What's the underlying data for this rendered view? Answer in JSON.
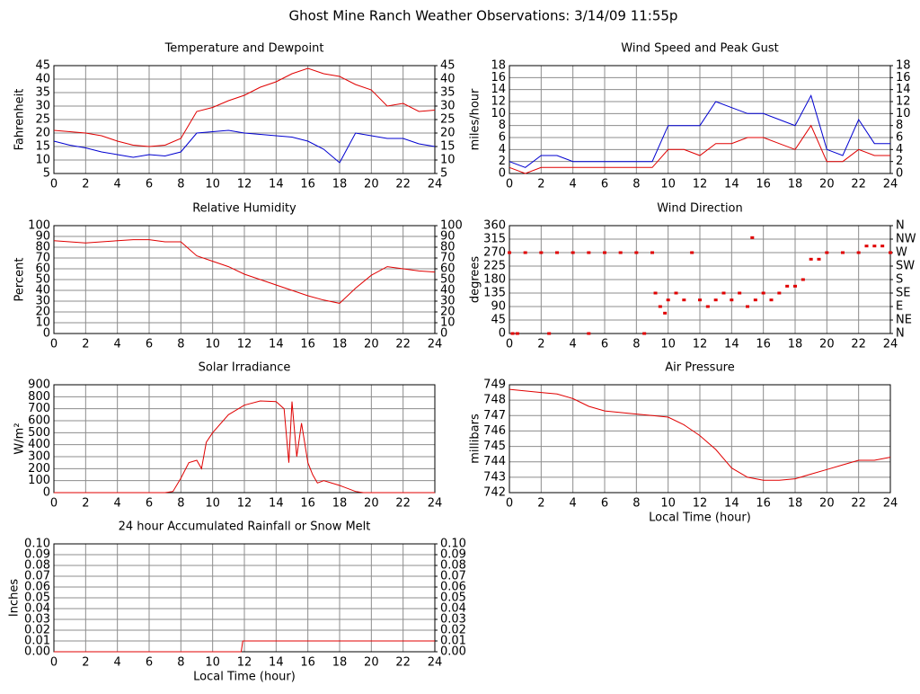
{
  "title": "Ghost Mine Ranch Weather Observations: 3/14/09 11:55p",
  "chart_data": [
    {
      "type": "line",
      "title": "Temperature and Dewpoint",
      "ylabel": "Fahrenheit",
      "x": [
        0,
        1,
        2,
        3,
        4,
        5,
        6,
        7,
        8,
        9,
        10,
        11,
        12,
        13,
        14,
        15,
        16,
        17,
        18,
        19,
        20,
        21,
        22,
        23,
        24
      ],
      "series": [
        {
          "color": "#e00000",
          "values": [
            21,
            20.5,
            20,
            19,
            17,
            15.5,
            15,
            15.5,
            18,
            28,
            29.5,
            32,
            34,
            37,
            39,
            42,
            44,
            42,
            41,
            38,
            36,
            30,
            31,
            28,
            28.5
          ]
        },
        {
          "color": "#0000d0",
          "values": [
            17,
            15.5,
            14.5,
            13,
            12,
            11,
            12,
            11.5,
            13,
            20,
            20.5,
            21,
            20,
            19.5,
            19,
            18.5,
            17,
            14,
            9,
            20,
            19,
            18,
            18,
            16,
            15
          ]
        }
      ],
      "xlim": [
        0,
        24
      ],
      "xticks": [
        0,
        2,
        4,
        6,
        8,
        10,
        12,
        14,
        16,
        18,
        20,
        22,
        24
      ],
      "ylim": [
        5,
        45
      ],
      "yticks": [
        5,
        10,
        15,
        20,
        25,
        30,
        35,
        40,
        45
      ],
      "y2lim": [
        5,
        45
      ],
      "y2ticks": [
        5,
        10,
        15,
        20,
        25,
        30,
        35,
        40,
        45
      ],
      "grid": true
    },
    {
      "type": "line",
      "title": "Wind Speed and Peak Gust",
      "ylabel": "miles/hour",
      "x": [
        0,
        1,
        2,
        3,
        4,
        5,
        6,
        7,
        8,
        9,
        10,
        11,
        12,
        13,
        14,
        15,
        16,
        17,
        18,
        19,
        20,
        21,
        22,
        23,
        24
      ],
      "series": [
        {
          "color": "#0000d0",
          "values": [
            2,
            1,
            3,
            3,
            2,
            2,
            2,
            2,
            2,
            2,
            8,
            8,
            8,
            12,
            11,
            10,
            10,
            9,
            8,
            13,
            4,
            3,
            9,
            5,
            5
          ]
        },
        {
          "color": "#e00000",
          "values": [
            1,
            0,
            1,
            1,
            1,
            1,
            1,
            1,
            1,
            1,
            4,
            4,
            3,
            5,
            5,
            6,
            6,
            5,
            4,
            8,
            2,
            2,
            4,
            3,
            3
          ]
        }
      ],
      "xlim": [
        0,
        24
      ],
      "xticks": [
        0,
        2,
        4,
        6,
        8,
        10,
        12,
        14,
        16,
        18,
        20,
        22,
        24
      ],
      "ylim": [
        0,
        18
      ],
      "yticks": [
        0,
        2,
        4,
        6,
        8,
        10,
        12,
        14,
        16,
        18
      ],
      "y2lim": [
        0,
        18
      ],
      "y2ticks": [
        0,
        2,
        4,
        6,
        8,
        10,
        12,
        14,
        16,
        18
      ],
      "grid": true
    },
    {
      "type": "line",
      "title": "Relative Humidity",
      "ylabel": "Percent",
      "x": [
        0,
        1,
        2,
        3,
        4,
        5,
        6,
        7,
        8,
        9,
        10,
        11,
        12,
        13,
        14,
        15,
        16,
        17,
        18,
        19,
        20,
        21,
        22,
        23,
        24
      ],
      "series": [
        {
          "color": "#e00000",
          "values": [
            86,
            85,
            84,
            85,
            86,
            87,
            87,
            85,
            85,
            72,
            67,
            62,
            55,
            50,
            45,
            40,
            35,
            31,
            28,
            42,
            54,
            62,
            60,
            58,
            57
          ]
        }
      ],
      "xlim": [
        0,
        24
      ],
      "xticks": [
        0,
        2,
        4,
        6,
        8,
        10,
        12,
        14,
        16,
        18,
        20,
        22,
        24
      ],
      "ylim": [
        0,
        100
      ],
      "yticks": [
        0,
        10,
        20,
        30,
        40,
        50,
        60,
        70,
        80,
        90,
        100
      ],
      "y2lim": [
        0,
        100
      ],
      "y2ticks": [
        0,
        10,
        20,
        30,
        40,
        50,
        60,
        70,
        80,
        90,
        100
      ],
      "grid": true
    },
    {
      "type": "scatter",
      "title": "Wind Direction",
      "ylabel": "degrees",
      "x": [
        0,
        1,
        2,
        3,
        4,
        5,
        6,
        7,
        8,
        9,
        0.2,
        0.5,
        2.5,
        5,
        8.5,
        9.2,
        9.5,
        9.8,
        10,
        10.5,
        11,
        11.5,
        12,
        12.5,
        13,
        13.5,
        14,
        14.5,
        15,
        15.3,
        15.5,
        16,
        16.5,
        17,
        17.5,
        18,
        18.5,
        19,
        19.5,
        20,
        21,
        22,
        22.5,
        23,
        23.5,
        24
      ],
      "series": [
        {
          "color": "#e00000",
          "values": [
            270,
            270,
            270,
            270,
            270,
            270,
            270,
            270,
            270,
            270,
            0,
            0,
            0,
            0,
            0,
            135,
            90,
            68,
            112,
            135,
            112,
            270,
            112,
            90,
            112,
            135,
            112,
            135,
            90,
            320,
            112,
            135,
            112,
            135,
            158,
            158,
            180,
            248,
            248,
            270,
            270,
            270,
            292,
            292,
            292,
            270
          ]
        }
      ],
      "xlim": [
        0,
        24
      ],
      "xticks": [
        0,
        2,
        4,
        6,
        8,
        10,
        12,
        14,
        16,
        18,
        20,
        22,
        24
      ],
      "ylim": [
        0,
        360
      ],
      "yticks": [
        0,
        45,
        90,
        135,
        180,
        225,
        270,
        315,
        360
      ],
      "y2lim": [
        0,
        360
      ],
      "y2ticks": [
        {
          "value": 0,
          "label": "N"
        },
        {
          "value": 45,
          "label": "NE"
        },
        {
          "value": 90,
          "label": "E"
        },
        {
          "value": 135,
          "label": "SE"
        },
        {
          "value": 180,
          "label": "S"
        },
        {
          "value": 225,
          "label": "SW"
        },
        {
          "value": 270,
          "label": "W"
        },
        {
          "value": 315,
          "label": "NW"
        },
        {
          "value": 360,
          "label": "N"
        }
      ],
      "grid": true
    },
    {
      "type": "line",
      "title": "Solar Irradiance",
      "ylabel": "W/m²",
      "x": [
        0,
        7,
        7.5,
        8,
        8.5,
        9,
        9.3,
        9.6,
        10,
        11,
        12,
        13,
        14,
        14.5,
        14.8,
        15,
        15.3,
        15.6,
        16,
        16.3,
        16.6,
        17,
        18,
        19,
        19.5,
        24
      ],
      "series": [
        {
          "color": "#e00000",
          "values": [
            0,
            0,
            10,
            120,
            250,
            270,
            200,
            420,
            500,
            650,
            730,
            765,
            760,
            700,
            250,
            760,
            300,
            580,
            250,
            150,
            80,
            100,
            60,
            10,
            0,
            0
          ]
        }
      ],
      "xlim": [
        0,
        24
      ],
      "xticks": [
        0,
        2,
        4,
        6,
        8,
        10,
        12,
        14,
        16,
        18,
        20,
        22,
        24
      ],
      "ylim": [
        0,
        900
      ],
      "yticks": [
        0,
        100,
        200,
        300,
        400,
        500,
        600,
        700,
        800,
        900
      ],
      "grid": true
    },
    {
      "type": "line",
      "title": "Air Pressure",
      "ylabel": "millibars",
      "xlabel": "Local Time (hour)",
      "x": [
        0,
        1,
        2,
        3,
        4,
        5,
        6,
        7,
        8,
        9,
        10,
        11,
        12,
        13,
        14,
        15,
        16,
        17,
        18,
        19,
        20,
        21,
        22,
        23,
        24
      ],
      "series": [
        {
          "color": "#e00000",
          "values": [
            748.7,
            748.6,
            748.5,
            748.4,
            748.1,
            747.6,
            747.3,
            747.2,
            747.1,
            747.0,
            746.9,
            746.4,
            745.7,
            744.8,
            743.6,
            743.0,
            742.8,
            742.8,
            742.9,
            743.2,
            743.5,
            743.8,
            744.1,
            744.1,
            744.3
          ]
        }
      ],
      "xlim": [
        0,
        24
      ],
      "xticks": [
        0,
        2,
        4,
        6,
        8,
        10,
        12,
        14,
        16,
        18,
        20,
        22,
        24
      ],
      "ylim": [
        742,
        749
      ],
      "yticks": [
        742,
        743,
        744,
        745,
        746,
        747,
        748,
        749
      ],
      "grid": true
    },
    {
      "type": "line",
      "title": "24 hour Accumulated Rainfall or Snow Melt",
      "ylabel": "Inches",
      "xlabel": "Local Time (hour)",
      "x": [
        0,
        11.8,
        11.9,
        24
      ],
      "series": [
        {
          "color": "#e00000",
          "values": [
            0,
            0,
            0.01,
            0.01
          ]
        }
      ],
      "xlim": [
        0,
        24
      ],
      "xticks": [
        0,
        2,
        4,
        6,
        8,
        10,
        12,
        14,
        16,
        18,
        20,
        22,
        24
      ],
      "ylim": [
        0,
        0.1
      ],
      "yticks": [
        {
          "value": 0,
          "label": "0.00"
        },
        {
          "value": 0.01,
          "label": "0.01"
        },
        {
          "value": 0.02,
          "label": "0.02"
        },
        {
          "value": 0.03,
          "label": "0.03"
        },
        {
          "value": 0.04,
          "label": "0.04"
        },
        {
          "value": 0.05,
          "label": "0.05"
        },
        {
          "value": 0.06,
          "label": "0.06"
        },
        {
          "value": 0.07,
          "label": "0.07"
        },
        {
          "value": 0.08,
          "label": "0.08"
        },
        {
          "value": 0.09,
          "label": "0.09"
        },
        {
          "value": 0.1,
          "label": "0.10"
        }
      ],
      "y2lim": [
        0,
        0.1
      ],
      "y2ticks": [
        {
          "value": 0,
          "label": "0.00"
        },
        {
          "value": 0.01,
          "label": "0.01"
        },
        {
          "value": 0.02,
          "label": "0.02"
        },
        {
          "value": 0.03,
          "label": "0.03"
        },
        {
          "value": 0.04,
          "label": "0.04"
        },
        {
          "value": 0.05,
          "label": "0.05"
        },
        {
          "value": 0.06,
          "label": "0.06"
        },
        {
          "value": 0.07,
          "label": "0.07"
        },
        {
          "value": 0.08,
          "label": "0.08"
        },
        {
          "value": 0.09,
          "label": "0.09"
        },
        {
          "value": 0.1,
          "label": "0.10"
        }
      ],
      "grid": true
    }
  ]
}
